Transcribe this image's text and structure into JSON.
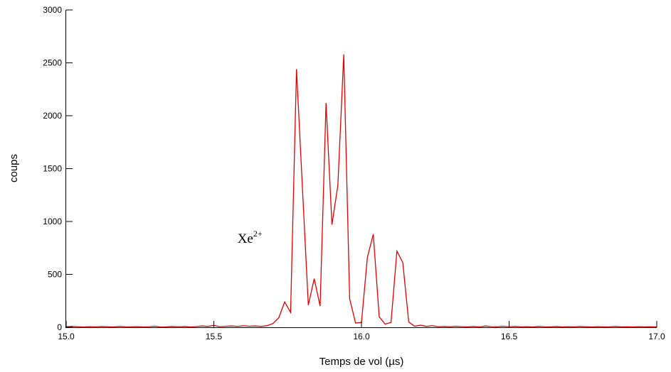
{
  "chart_data": {
    "type": "line",
    "xlabel": "Temps de vol  (µs)",
    "ylabel": "coups",
    "xlim": [
      15.0,
      17.0
    ],
    "ylim": [
      0,
      3000
    ],
    "x_ticks": [
      15.0,
      15.5,
      16.0,
      16.5,
      17.0
    ],
    "x_tick_labels": [
      "15.0",
      "15.5",
      "16.0",
      "16.5",
      "17.0"
    ],
    "y_ticks": [
      0,
      500,
      1000,
      1500,
      2000,
      2500,
      3000
    ],
    "y_tick_labels": [
      "0",
      "500",
      "1000",
      "1500",
      "2000",
      "2500",
      "3000"
    ],
    "grid": false,
    "line_color": "#e00000",
    "annotation": {
      "text": "Xe",
      "sup": "2+",
      "x": 15.58,
      "y": 800
    },
    "series": [
      {
        "x": [
          15.0,
          15.02,
          15.04,
          15.06,
          15.08,
          15.1,
          15.12,
          15.14,
          15.16,
          15.18,
          15.2,
          15.22,
          15.24,
          15.26,
          15.28,
          15.3,
          15.32,
          15.34,
          15.36,
          15.38,
          15.4,
          15.42,
          15.44,
          15.46,
          15.48,
          15.5,
          15.52,
          15.54,
          15.56,
          15.58,
          15.6,
          15.62,
          15.64,
          15.66,
          15.68,
          15.7,
          15.72,
          15.74,
          15.76,
          15.78,
          15.8,
          15.82,
          15.84,
          15.86,
          15.88,
          15.9,
          15.92,
          15.94,
          15.96,
          15.98,
          16.0,
          16.02,
          16.04,
          16.06,
          16.08,
          16.1,
          16.12,
          16.14,
          16.16,
          16.18,
          16.2,
          16.22,
          16.24,
          16.26,
          16.28,
          16.3,
          16.32,
          16.34,
          16.36,
          16.38,
          16.4,
          16.42,
          16.44,
          16.46,
          16.48,
          16.5,
          16.52,
          16.54,
          16.56,
          16.58,
          16.6,
          16.62,
          16.64,
          16.66,
          16.68,
          16.7,
          16.72,
          16.74,
          16.76,
          16.78,
          16.8,
          16.82,
          16.84,
          16.86,
          16.88,
          16.9,
          16.92,
          16.94,
          16.96,
          16.98,
          17.0
        ],
        "values": [
          5,
          8,
          5,
          3,
          6,
          4,
          7,
          5,
          3,
          8,
          5,
          4,
          6,
          3,
          5,
          10,
          2,
          4,
          8,
          5,
          7,
          3,
          6,
          12,
          8,
          18,
          5,
          9,
          12,
          8,
          14,
          10,
          12,
          8,
          15,
          35,
          90,
          240,
          140,
          2440,
          1320,
          210,
          460,
          200,
          2120,
          970,
          1340,
          2580,
          270,
          40,
          45,
          660,
          880,
          100,
          30,
          45,
          720,
          610,
          50,
          10,
          20,
          8,
          15,
          5,
          8,
          5,
          10,
          6,
          4,
          8,
          3,
          12,
          6,
          5,
          10,
          5,
          8,
          4,
          6,
          3,
          8,
          5,
          4,
          7,
          3,
          6,
          4,
          8,
          5,
          3,
          6,
          4,
          5,
          8,
          4,
          5,
          3,
          6,
          4,
          5,
          3
        ]
      }
    ]
  }
}
